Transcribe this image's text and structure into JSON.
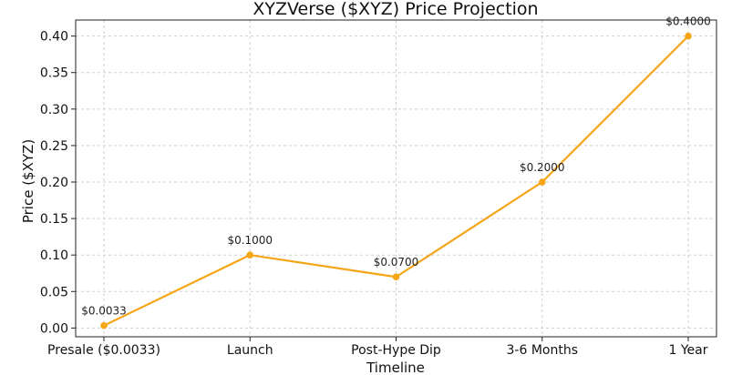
{
  "chart_data": {
    "type": "line",
    "title": "XYZVerse ($XYZ) Price Projection",
    "xlabel": "Timeline",
    "ylabel": "Price ($XYZ)",
    "categories": [
      "Presale ($0.0033)",
      "Launch",
      "Post-Hype Dip",
      "3-6 Months",
      "1 Year"
    ],
    "series": [
      {
        "values": [
          0.0033,
          0.1,
          0.07,
          0.2,
          0.4
        ],
        "color": "#f5a516"
      }
    ],
    "data_labels": [
      "$0.0033",
      "$0.1000",
      "$0.0700",
      "$0.2000",
      "$0.4000"
    ],
    "ylim": [
      -0.012,
      0.422
    ],
    "yticks": [
      0.0,
      0.05,
      0.1,
      0.15,
      0.2,
      0.25,
      0.3,
      0.35,
      0.4
    ],
    "ytick_labels": [
      "0.00",
      "0.05",
      "0.10",
      "0.15",
      "0.20",
      "0.25",
      "0.30",
      "0.35",
      "0.40"
    ],
    "grid": true,
    "marker": "circle"
  }
}
